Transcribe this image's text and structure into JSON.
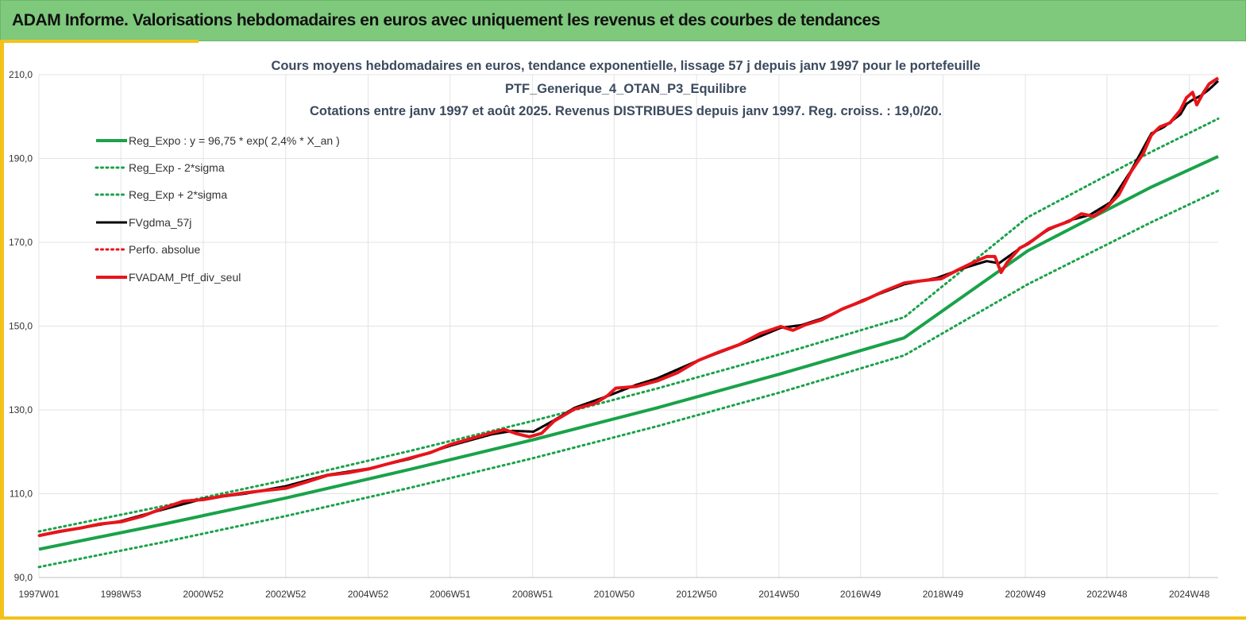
{
  "banner": {
    "title": "ADAM Informe. Valorisations hebdomadaires en euros avec uniquement les revenus et des courbes de tendances",
    "background": "#7ec97c"
  },
  "colors": {
    "green": "#1aa24a",
    "black": "#000000",
    "red": "#e8141b",
    "accent": "#f3c21a",
    "grid": "#e3e3e3"
  },
  "chart_data": {
    "type": "line",
    "title_lines": [
      "Cours moyens hebdomadaires  en euros, tendance exponentielle, lissage 57 j depuis janv 1997 pour le portefeuille",
      "PTF_Generique_4_OTAN_P3_Equilibre",
      "Cotations entre janv 1997 et août 2025. Revenus DISTRIBUES depuis janv 1997. Reg. croiss. : 19,0/20."
    ],
    "xlabel": "",
    "ylabel": "",
    "ylim": [
      90,
      210
    ],
    "xlim": [
      1997.0,
      2025.62
    ],
    "y_ticks": [
      {
        "value": 90,
        "label": "90,0"
      },
      {
        "value": 110,
        "label": "110,0"
      },
      {
        "value": 130,
        "label": "130,0"
      },
      {
        "value": 150,
        "label": "150,0"
      },
      {
        "value": 170,
        "label": "170,0"
      },
      {
        "value": 190,
        "label": "190,0"
      },
      {
        "value": 210,
        "label": "210,0"
      }
    ],
    "x_ticks": [
      {
        "value": 1997.0,
        "label": "1997W01"
      },
      {
        "value": 1998.99,
        "label": "1998W53"
      },
      {
        "value": 2000.99,
        "label": "2000W52"
      },
      {
        "value": 2002.99,
        "label": "2002W52"
      },
      {
        "value": 2004.99,
        "label": "2004W52"
      },
      {
        "value": 2006.98,
        "label": "2006W51"
      },
      {
        "value": 2008.98,
        "label": "2008W51"
      },
      {
        "value": 2010.96,
        "label": "2010W50"
      },
      {
        "value": 2012.96,
        "label": "2012W50"
      },
      {
        "value": 2014.96,
        "label": "2014W50"
      },
      {
        "value": 2016.94,
        "label": "2016W49"
      },
      {
        "value": 2018.94,
        "label": "2018W49"
      },
      {
        "value": 2020.94,
        "label": "2020W49"
      },
      {
        "value": 2022.92,
        "label": "2022W48"
      },
      {
        "value": 2024.92,
        "label": "2024W48"
      }
    ],
    "grid": true,
    "legend_position": "top-left",
    "series": [
      {
        "name": "Reg_Expo : y = 96,75 * exp( 2,4% *  X_an )",
        "color": "#1aa24a",
        "style": "solid",
        "x": [
          1997.0,
          2000.0,
          2003.0,
          2006.0,
          2009.0,
          2012.0,
          2015.0,
          2018.0,
          2021.0,
          2024.0,
          2025.62
        ],
        "y": [
          96.75,
          102.7,
          109.0,
          115.8,
          122.9,
          130.5,
          138.6,
          147.2,
          168.0,
          183.2,
          190.5
        ]
      },
      {
        "name": "Reg_Exp - 2*sigma",
        "color": "#1aa24a",
        "style": "dotted",
        "x": [
          1997.0,
          2000.0,
          2003.0,
          2006.0,
          2009.0,
          2012.0,
          2015.0,
          2018.0,
          2021.0,
          2024.0,
          2025.62
        ],
        "y": [
          92.5,
          98.4,
          104.7,
          111.4,
          118.5,
          126.1,
          134.2,
          143.0,
          160.0,
          174.8,
          182.3
        ]
      },
      {
        "name": "Reg_Exp + 2*sigma",
        "color": "#1aa24a",
        "style": "dotted",
        "x": [
          1997.0,
          2000.0,
          2003.0,
          2006.0,
          2009.0,
          2012.0,
          2015.0,
          2018.0,
          2021.0,
          2024.0,
          2025.62
        ],
        "y": [
          101.0,
          107.0,
          113.3,
          120.2,
          127.4,
          135.1,
          143.3,
          152.1,
          176.0,
          191.6,
          199.5
        ]
      },
      {
        "name": "FVgdma_57j",
        "color": "#000000",
        "style": "solid",
        "x": [
          1997.0,
          1998.0,
          1999.0,
          2000.0,
          2001.0,
          2002.0,
          2003.0,
          2004.0,
          2005.0,
          2006.0,
          2007.0,
          2008.0,
          2008.5,
          2009.0,
          2009.5,
          2010.0,
          2010.8,
          2011.5,
          2012.0,
          2013.0,
          2014.0,
          2015.0,
          2015.5,
          2016.0,
          2017.0,
          2018.0,
          2018.8,
          2019.5,
          2020.0,
          2020.3,
          2020.8,
          2021.5,
          2022.0,
          2022.5,
          2023.0,
          2023.5,
          2024.0,
          2024.3,
          2024.7,
          2024.85,
          2025.0,
          2025.2,
          2025.4,
          2025.62
        ],
        "y": [
          100.0,
          101.8,
          103.5,
          106.2,
          108.8,
          110.0,
          111.8,
          114.5,
          116.0,
          118.3,
          121.5,
          124.2,
          125.0,
          124.8,
          127.5,
          130.5,
          133.3,
          136.0,
          137.5,
          141.8,
          145.5,
          149.6,
          150.2,
          151.8,
          156.2,
          160.0,
          161.5,
          164.0,
          165.5,
          165.0,
          168.5,
          173.0,
          175.2,
          176.5,
          179.5,
          187.0,
          196.0,
          197.5,
          200.5,
          203.0,
          204.0,
          205.0,
          206.5,
          208.5
        ]
      },
      {
        "name": "Perfo. absolue",
        "color": "#e8141b",
        "style": "dotted",
        "x": [
          1997.0,
          1998.0,
          1999.0,
          2000.0,
          2001.0,
          2002.0,
          2003.0,
          2004.0,
          2005.0,
          2006.0,
          2007.0,
          2008.0,
          2008.5,
          2009.0,
          2009.5,
          2010.0,
          2010.8,
          2011.5,
          2012.0,
          2013.0,
          2014.0,
          2015.0,
          2015.5,
          2016.0,
          2017.0,
          2018.0,
          2018.8,
          2019.5,
          2020.0,
          2020.3,
          2020.8,
          2021.5,
          2022.0,
          2022.5,
          2023.0,
          2023.5,
          2024.0,
          2024.3,
          2024.7,
          2024.85,
          2025.0,
          2025.2,
          2025.4,
          2025.62
        ],
        "y": [
          100.0,
          101.8,
          103.5,
          106.2,
          108.8,
          110.0,
          111.8,
          114.5,
          116.0,
          118.3,
          121.5,
          124.2,
          125.0,
          124.8,
          127.5,
          130.5,
          133.3,
          136.0,
          137.5,
          141.8,
          145.5,
          149.6,
          150.2,
          151.8,
          156.2,
          160.0,
          161.5,
          164.0,
          165.5,
          165.0,
          168.5,
          173.0,
          175.2,
          176.5,
          179.5,
          187.0,
          196.0,
          197.5,
          200.5,
          203.0,
          204.0,
          205.0,
          206.5,
          208.5
        ]
      },
      {
        "name": "FVADAM_Ptf_div_seul",
        "color": "#e8141b",
        "style": "solid",
        "x": [
          1997.0,
          1997.5,
          1998.0,
          1998.5,
          1999.0,
          1999.5,
          2000.0,
          2000.5,
          2001.0,
          2001.5,
          2002.0,
          2002.5,
          2003.0,
          2003.5,
          2004.0,
          2004.5,
          2005.0,
          2005.5,
          2006.0,
          2006.5,
          2007.0,
          2007.5,
          2008.0,
          2008.3,
          2008.6,
          2008.9,
          2009.2,
          2009.5,
          2010.0,
          2010.5,
          2010.8,
          2011.0,
          2011.5,
          2012.0,
          2012.5,
          2013.0,
          2013.5,
          2014.0,
          2014.5,
          2015.0,
          2015.3,
          2015.6,
          2016.0,
          2016.5,
          2017.0,
          2017.5,
          2018.0,
          2018.5,
          2018.9,
          2019.3,
          2019.7,
          2020.0,
          2020.2,
          2020.35,
          2020.5,
          2020.8,
          2021.0,
          2021.5,
          2022.0,
          2022.3,
          2022.6,
          2022.9,
          2023.2,
          2023.5,
          2023.8,
          2024.0,
          2024.2,
          2024.45,
          2024.7,
          2024.85,
          2025.0,
          2025.1,
          2025.25,
          2025.4,
          2025.62
        ],
        "y": [
          100.0,
          101.0,
          101.8,
          102.8,
          103.3,
          104.6,
          106.5,
          108.2,
          108.6,
          109.5,
          110.2,
          110.8,
          111.3,
          112.8,
          114.4,
          115.0,
          115.9,
          117.2,
          118.5,
          119.8,
          121.8,
          123.2,
          124.6,
          125.3,
          124.3,
          123.6,
          124.4,
          127.3,
          130.2,
          131.6,
          133.4,
          135.2,
          135.6,
          136.9,
          138.9,
          141.8,
          143.8,
          145.6,
          148.2,
          149.9,
          149.0,
          150.3,
          151.5,
          154.1,
          156.0,
          158.3,
          160.3,
          160.9,
          161.3,
          163.4,
          165.3,
          166.6,
          166.6,
          162.8,
          165.2,
          168.6,
          169.6,
          173.2,
          175.0,
          176.8,
          176.2,
          178.2,
          181.2,
          186.8,
          191.2,
          195.6,
          197.5,
          198.5,
          201.5,
          204.5,
          205.8,
          202.8,
          205.5,
          207.8,
          209.2
        ]
      }
    ]
  }
}
